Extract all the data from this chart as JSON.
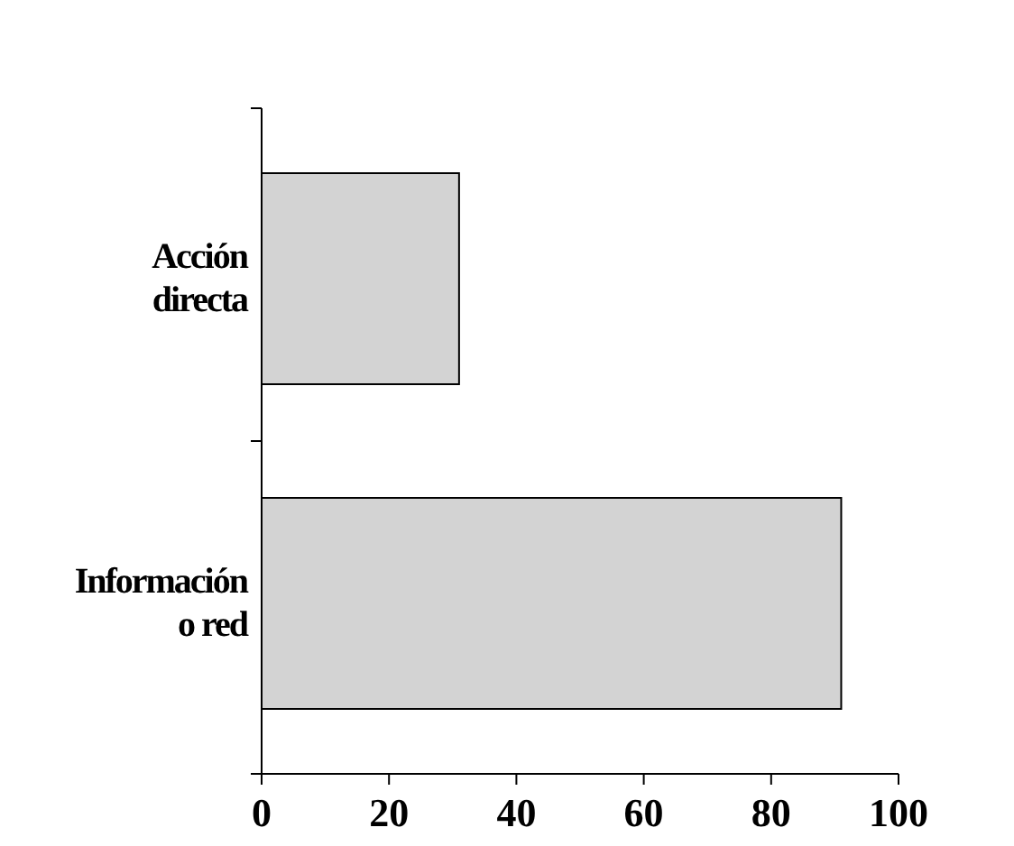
{
  "chart_data": {
    "type": "bar",
    "orientation": "horizontal",
    "categories": [
      "Acción directa",
      "Información o red"
    ],
    "values": [
      31,
      91
    ],
    "color": "#d3d3d3",
    "xlim": [
      0,
      100
    ],
    "xticks": [
      0,
      20,
      40,
      60,
      80,
      100
    ],
    "grid": false
  }
}
